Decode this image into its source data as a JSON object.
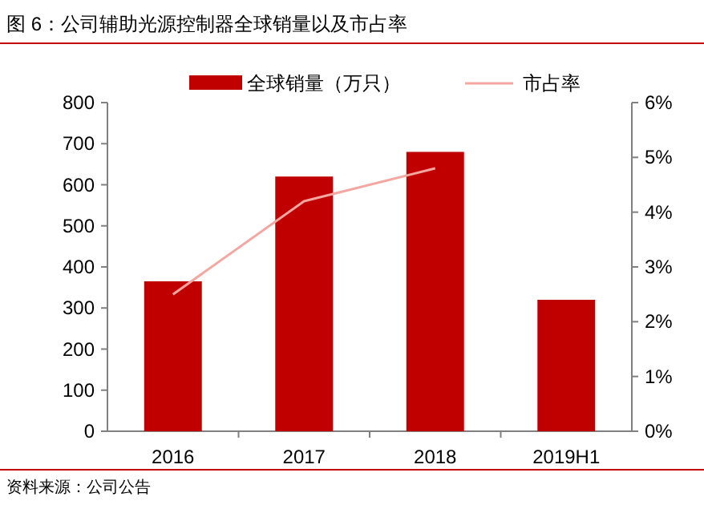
{
  "chart_data": {
    "type": "bar",
    "title": "图 6：公司辅助光源控制器全球销量以及市占率",
    "categories": [
      "2016",
      "2017",
      "2018",
      "2019H1"
    ],
    "series": [
      {
        "name": "全球销量（万只）",
        "color": "#c00000",
        "values": [
          365,
          620,
          680,
          320
        ]
      },
      {
        "name": "市占率",
        "type": "line",
        "axis": "y2",
        "color": "#f4a6a0",
        "values": [
          2.5,
          4.2,
          4.8,
          null
        ]
      }
    ],
    "ylim": [
      0,
      800
    ],
    "yticks": [
      0,
      100,
      200,
      300,
      400,
      500,
      600,
      700,
      800
    ],
    "y2lim": [
      0,
      6
    ],
    "y2ticks": [
      {
        "value": 0,
        "label": "0%"
      },
      {
        "value": 1,
        "label": "1%"
      },
      {
        "value": 2,
        "label": "2%"
      },
      {
        "value": 3,
        "label": "3%"
      },
      {
        "value": 4,
        "label": "4%"
      },
      {
        "value": 5,
        "label": "5%"
      },
      {
        "value": 6,
        "label": "6%"
      }
    ],
    "legend": "top",
    "annotations": [
      "资料来源：公司公告"
    ]
  }
}
